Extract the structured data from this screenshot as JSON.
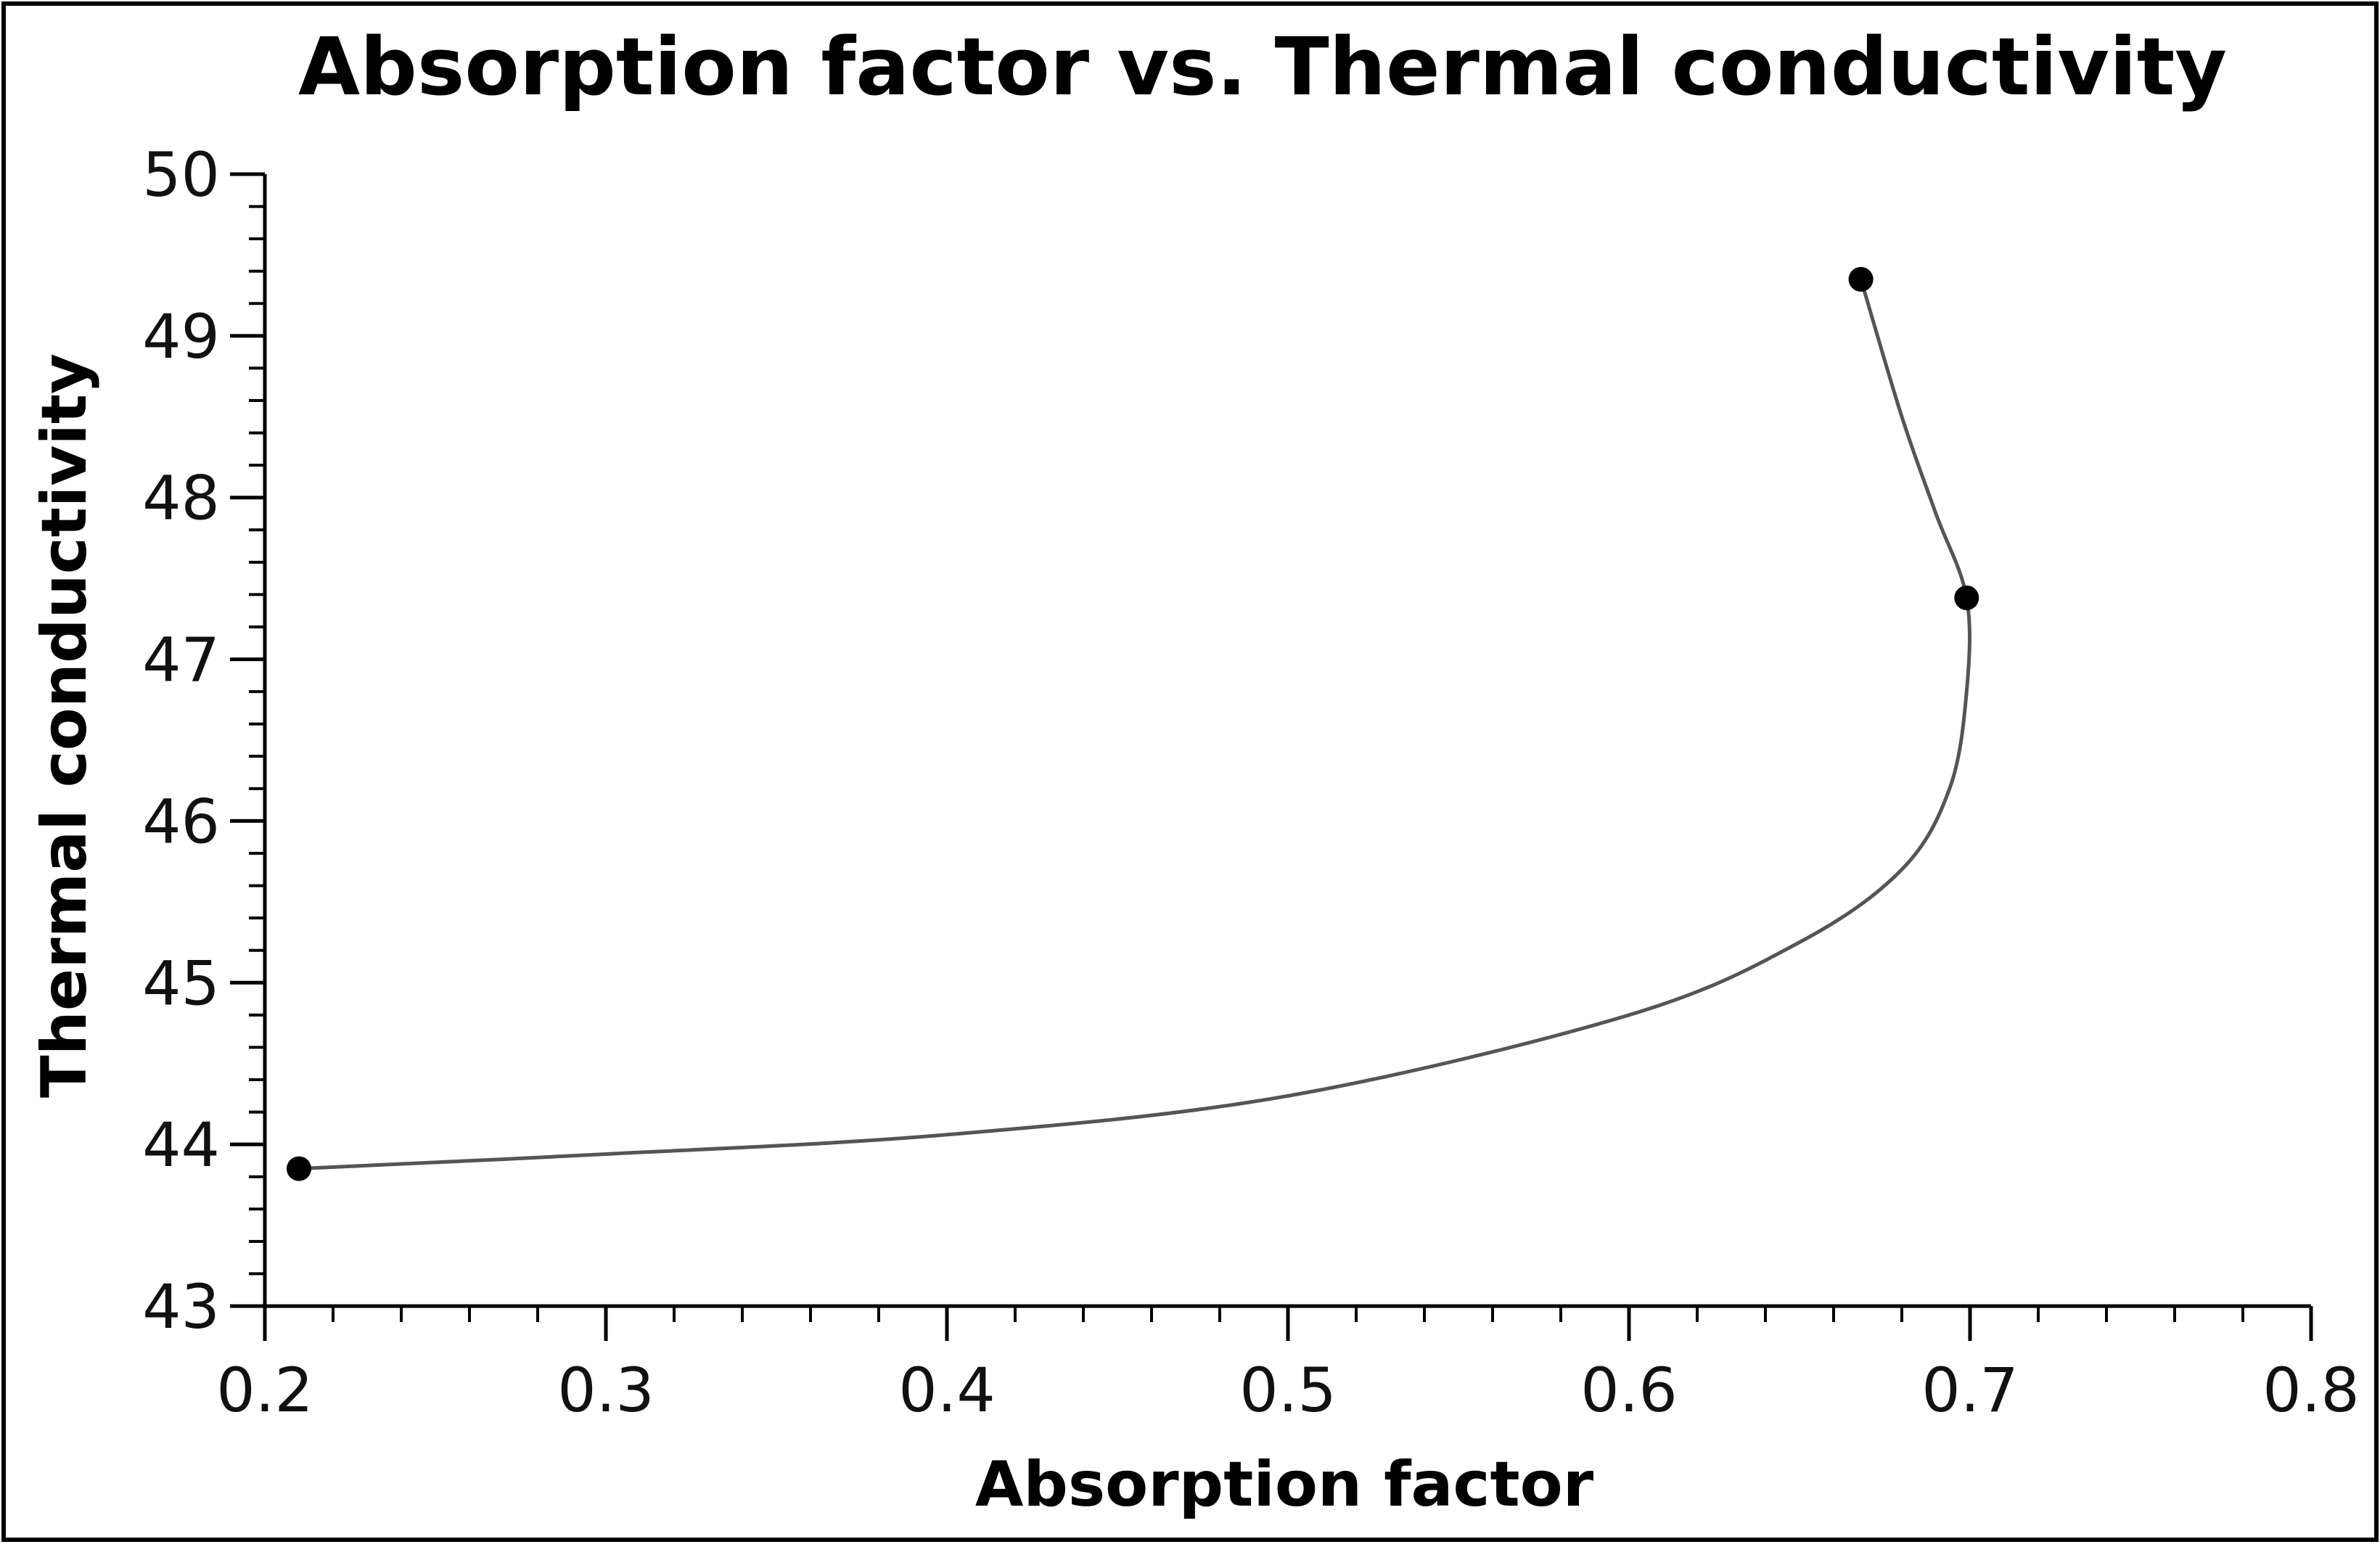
{
  "chart_data": {
    "type": "line",
    "title": "Absorption factor vs. Thermal conductivity",
    "xlabel": "Absorption factor",
    "ylabel": "Thermal conductivity",
    "xlim": [
      0.2,
      0.8
    ],
    "ylim": [
      43,
      50
    ],
    "x_ticks": [
      "0.2",
      "0.3",
      "0.4",
      "0.5",
      "0.6",
      "0.7",
      "0.8"
    ],
    "y_ticks": [
      "43",
      "44",
      "45",
      "46",
      "47",
      "48",
      "49",
      "50"
    ],
    "x_tick_values": [
      0.2,
      0.3,
      0.4,
      0.5,
      0.6,
      0.7,
      0.8
    ],
    "y_tick_values": [
      43,
      44,
      45,
      46,
      47,
      48,
      49,
      50
    ],
    "series": [
      {
        "name": "Absorption factor vs. Thermal conductivity",
        "markers": [
          {
            "x": 0.21,
            "y": 43.85
          },
          {
            "x": 0.699,
            "y": 47.38
          },
          {
            "x": 0.668,
            "y": 49.35
          }
        ],
        "curve": [
          {
            "x": 0.21,
            "y": 43.85
          },
          {
            "x": 0.3,
            "y": 43.94
          },
          {
            "x": 0.4,
            "y": 44.06
          },
          {
            "x": 0.5,
            "y": 44.3
          },
          {
            "x": 0.6,
            "y": 44.8
          },
          {
            "x": 0.65,
            "y": 45.25
          },
          {
            "x": 0.68,
            "y": 45.7
          },
          {
            "x": 0.694,
            "y": 46.2
          },
          {
            "x": 0.699,
            "y": 46.8
          },
          {
            "x": 0.699,
            "y": 47.38
          },
          {
            "x": 0.69,
            "y": 47.9
          },
          {
            "x": 0.68,
            "y": 48.5
          },
          {
            "x": 0.668,
            "y": 49.35
          }
        ]
      }
    ],
    "grid": false,
    "legend": "none",
    "colors": {
      "line": "#555555",
      "marker": "#000000",
      "axis": "#000000",
      "frame": "#000000"
    }
  }
}
